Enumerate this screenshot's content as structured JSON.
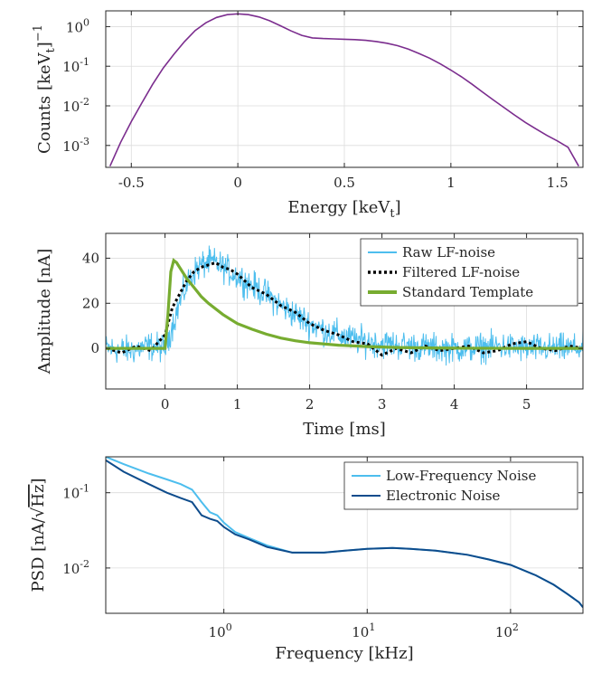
{
  "chart_data": [
    {
      "type": "line",
      "ylog": true,
      "xlim": [
        -0.62,
        1.62
      ],
      "ylim": [
        0.00028,
        2.5
      ],
      "xticks": [
        -0.5,
        0,
        0.5,
        1,
        1.5
      ],
      "xtick_labels": [
        "-0.5",
        "0",
        "0.5",
        "1",
        "1.5"
      ],
      "yticks": [
        0.001,
        0.01,
        0.1,
        1
      ],
      "ytick_base": "10",
      "ytick_exps": [
        "-3",
        "-2",
        "-1",
        "0"
      ],
      "grid": true,
      "xlabel": {
        "text": "Energy [keV",
        "sub": "t",
        "tail": "]"
      },
      "ylabel": {
        "text": "Counts [keV",
        "sub": "t",
        "tail": "]",
        "sup": "−1"
      },
      "series": [
        {
          "color": "#7b2d8e",
          "x": [
            -0.6,
            -0.55,
            -0.5,
            -0.45,
            -0.4,
            -0.35,
            -0.3,
            -0.25,
            -0.2,
            -0.15,
            -0.1,
            -0.05,
            0,
            0.05,
            0.1,
            0.15,
            0.2,
            0.25,
            0.3,
            0.35,
            0.4,
            0.45,
            0.5,
            0.55,
            0.6,
            0.65,
            0.7,
            0.75,
            0.8,
            0.85,
            0.9,
            0.95,
            1.0,
            1.05,
            1.1,
            1.15,
            1.2,
            1.25,
            1.3,
            1.35,
            1.4,
            1.45,
            1.5,
            1.55,
            1.6
          ],
          "y": [
            0.0003,
            0.0012,
            0.004,
            0.012,
            0.035,
            0.09,
            0.2,
            0.42,
            0.8,
            1.25,
            1.7,
            2.0,
            2.1,
            2.0,
            1.75,
            1.4,
            1.05,
            0.78,
            0.6,
            0.52,
            0.5,
            0.49,
            0.48,
            0.47,
            0.45,
            0.42,
            0.38,
            0.33,
            0.27,
            0.21,
            0.16,
            0.115,
            0.08,
            0.054,
            0.035,
            0.022,
            0.014,
            0.009,
            0.0058,
            0.0038,
            0.0026,
            0.0018,
            0.0013,
            0.0009,
            0.0003
          ]
        }
      ]
    },
    {
      "type": "line",
      "xlim": [
        -0.82,
        5.78
      ],
      "ylim": [
        -18,
        51
      ],
      "xticks": [
        0,
        1,
        2,
        3,
        4,
        5
      ],
      "xtick_labels": [
        "0",
        "1",
        "2",
        "3",
        "4",
        "5"
      ],
      "yticks": [
        0,
        20,
        40
      ],
      "ytick_labels": [
        "0",
        "20",
        "40"
      ],
      "grid": true,
      "xlabel": "Time [ms]",
      "ylabel": "Amplitude [nA]",
      "legend": {
        "position": "top-right"
      },
      "series": [
        {
          "name": "Raw LF-noise",
          "color": "#4dbeee",
          "x": [
            -0.8,
            -0.5,
            -0.2,
            0.0,
            0.1,
            0.2,
            0.3,
            0.4,
            0.5,
            0.6,
            0.7,
            0.8,
            0.9,
            1.0,
            1.2,
            1.4,
            1.6,
            1.8,
            2.0,
            2.2,
            2.4,
            2.6,
            2.8,
            3.0,
            3.4,
            3.8,
            4.2,
            4.6,
            5.0,
            5.4,
            5.78
          ],
          "y": [
            0,
            -1,
            1,
            0,
            10,
            20,
            28,
            34,
            37,
            38,
            38,
            36,
            34,
            32,
            28,
            24,
            19,
            15,
            11,
            8,
            6,
            4,
            3,
            2,
            1,
            0,
            0,
            1,
            0,
            0,
            0
          ],
          "noise": 10
        },
        {
          "name": "Filtered LF-noise",
          "color": "#000000",
          "dash": "3,3",
          "x": [
            -0.8,
            -0.6,
            -0.4,
            -0.2,
            0.0,
            0.1,
            0.2,
            0.3,
            0.4,
            0.5,
            0.6,
            0.7,
            0.8,
            0.9,
            1.0,
            1.2,
            1.4,
            1.6,
            1.8,
            2.0,
            2.2,
            2.4,
            2.6,
            2.8,
            3.0,
            3.2,
            3.4,
            3.6,
            3.8,
            4.0,
            4.2,
            4.4,
            4.6,
            4.8,
            5.0,
            5.2,
            5.4,
            5.6,
            5.78
          ],
          "y": [
            0,
            -2,
            1,
            -1,
            6,
            18,
            24,
            30,
            34,
            36,
            37,
            38,
            36,
            35,
            33,
            27,
            24,
            19,
            16,
            11,
            8,
            6,
            3,
            2,
            -3,
            0,
            -2,
            1,
            -1,
            0,
            1,
            -2,
            -1,
            2,
            3,
            0,
            -1,
            1,
            0
          ],
          "noise": 0
        },
        {
          "name": "Standard Template",
          "color": "#77ac30",
          "x": [
            -0.82,
            0.0,
            0.04,
            0.08,
            0.12,
            0.16,
            0.2,
            0.3,
            0.4,
            0.5,
            0.6,
            0.8,
            1.0,
            1.2,
            1.4,
            1.6,
            1.8,
            2.0,
            2.4,
            2.8,
            3.2,
            3.6,
            4.0,
            5.0,
            5.78
          ],
          "y": [
            0,
            0,
            15,
            34,
            39,
            38,
            36,
            31,
            27,
            23,
            20,
            15,
            11,
            8.5,
            6.3,
            4.6,
            3.4,
            2.5,
            1.4,
            0.8,
            0.4,
            0.2,
            0.1,
            0,
            0
          ],
          "noise": 0
        }
      ]
    },
    {
      "type": "line",
      "xlog": true,
      "ylog": true,
      "xlim": [
        0.15,
        320
      ],
      "ylim": [
        0.0025,
        0.3
      ],
      "xticks": [
        1,
        10,
        100
      ],
      "xtick_base": "10",
      "xtick_exps": [
        "0",
        "1",
        "2"
      ],
      "yticks": [
        0.01,
        0.1
      ],
      "ytick_base": "10",
      "ytick_exps": [
        "-2",
        "-1"
      ],
      "grid": true,
      "xlabel": "Frequency [kHz]",
      "ylabel": {
        "text": "PSD",
        "unit": "nA/",
        "root": "Hz"
      },
      "legend": {
        "position": "top-right"
      },
      "series": [
        {
          "name": "Low-Frequency Noise",
          "color": "#4dbeee",
          "x": [
            0.15,
            0.2,
            0.3,
            0.4,
            0.5,
            0.6,
            0.7,
            0.8,
            0.9,
            1.0,
            1.2,
            1.5,
            2,
            3,
            5,
            7,
            10,
            15,
            20,
            30,
            50,
            70,
            100,
            150,
            200,
            250,
            300,
            320
          ],
          "y": [
            0.3,
            0.24,
            0.18,
            0.15,
            0.13,
            0.11,
            0.075,
            0.055,
            0.05,
            0.04,
            0.03,
            0.025,
            0.02,
            0.016,
            0.016,
            0.017,
            0.018,
            0.0185,
            0.018,
            0.017,
            0.015,
            0.013,
            0.011,
            0.008,
            0.006,
            0.0045,
            0.0035,
            0.003
          ]
        },
        {
          "name": "Electronic Noise",
          "color": "#0e4c8c",
          "x": [
            0.15,
            0.2,
            0.3,
            0.4,
            0.5,
            0.6,
            0.7,
            0.8,
            0.9,
            1.0,
            1.2,
            1.5,
            2,
            3,
            5,
            7,
            10,
            15,
            20,
            30,
            50,
            70,
            100,
            150,
            200,
            250,
            300,
            320
          ],
          "y": [
            0.27,
            0.19,
            0.13,
            0.1,
            0.085,
            0.075,
            0.05,
            0.045,
            0.042,
            0.035,
            0.028,
            0.024,
            0.019,
            0.016,
            0.016,
            0.017,
            0.018,
            0.0185,
            0.018,
            0.017,
            0.015,
            0.013,
            0.011,
            0.008,
            0.006,
            0.0045,
            0.0035,
            0.003
          ]
        }
      ]
    }
  ]
}
